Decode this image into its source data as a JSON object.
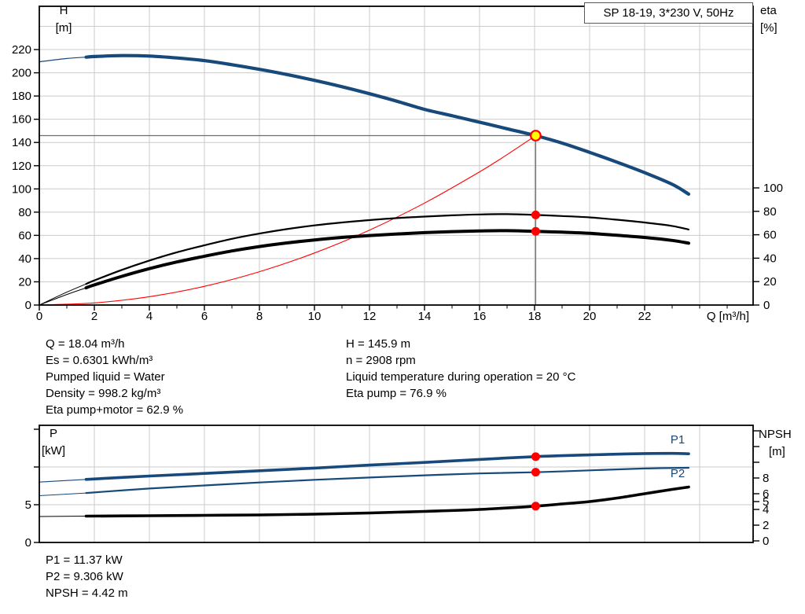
{
  "title_box": "SP 18-19, 3*230 V, 50Hz",
  "colors": {
    "curve_blue": "#17497B",
    "red": "#FF0000",
    "yellow": "#FFFF00",
    "black": "#000000",
    "grid": "#CBCBCB",
    "crosshair": "#6E6E6E",
    "border": "#000000"
  },
  "info_left": {
    "lines": [
      "Q = 18.04 m³/h",
      "Es = 0.6301 kWh/m³",
      "Pumped liquid = Water",
      "Density = 998.2 kg/m³",
      "Eta pump+motor = 62.9 %"
    ]
  },
  "info_right": {
    "lines": [
      "H = 145.9 m",
      "n = 2908 rpm",
      "Liquid temperature during operation = 20 °C",
      "Eta pump = 76.9 %"
    ]
  },
  "info_bottom": {
    "lines": [
      "P1 = 11.37 kW",
      "P2 = 9.306 kW",
      "NPSH = 4.42 m"
    ]
  },
  "chart_data": [
    {
      "type": "line",
      "id": "hq",
      "title": "SP 18-19, 3*230 V, 50Hz",
      "xlabel": "Q [m³/h]",
      "y_left_title": [
        "H",
        "[m]"
      ],
      "y_right_title": [
        "eta",
        "[%]"
      ],
      "xlim": [
        0,
        25.9
      ],
      "ylim_left": [
        0,
        257
      ],
      "ylim_right": [
        0,
        173
      ],
      "x_tick_labels": [
        0,
        2,
        4,
        6,
        8,
        10,
        12,
        14,
        16,
        18,
        20,
        22
      ],
      "y_left_ticks": [
        0,
        20,
        40,
        60,
        80,
        100,
        120,
        140,
        160,
        180,
        200,
        220
      ],
      "y_right_ticks": [
        0,
        20,
        40,
        60,
        80,
        100
      ],
      "grid": "on",
      "series": [
        {
          "name": "head-curve",
          "axis": "H",
          "color": "#17497B",
          "width": 4.2,
          "thin_width": 1.2,
          "thick_from": 1.7,
          "points": [
            [
              0,
              209.5
            ],
            [
              1,
              212.3
            ],
            [
              1.7,
              213.5
            ],
            [
              2,
              214
            ],
            [
              3,
              214.8
            ],
            [
              4,
              214.4
            ],
            [
              5,
              212.8
            ],
            [
              6,
              210.5
            ],
            [
              7,
              207
            ],
            [
              8,
              203
            ],
            [
              9,
              198.5
            ],
            [
              10,
              193.5
            ],
            [
              11,
              188
            ],
            [
              12,
              182
            ],
            [
              13,
              175.5
            ],
            [
              14,
              168.5
            ],
            [
              15,
              163
            ],
            [
              16,
              157.5
            ],
            [
              17,
              151.8
            ],
            [
              18.04,
              145.9
            ],
            [
              19,
              139.5
            ],
            [
              20,
              131.5
            ],
            [
              21,
              123
            ],
            [
              22,
              114
            ],
            [
              23,
              104
            ],
            [
              23.6,
              95.5
            ]
          ]
        },
        {
          "name": "system-curve",
          "axis": "H",
          "color": "#FF0000",
          "width": 1.1,
          "points": [
            [
              0,
              0
            ],
            [
              2,
              1.8
            ],
            [
              4,
              7.2
            ],
            [
              6,
              16.1
            ],
            [
              8,
              28.7
            ],
            [
              10,
              44.8
            ],
            [
              12,
              64.5
            ],
            [
              14,
              87.8
            ],
            [
              16,
              114.7
            ],
            [
              17,
              129.5
            ],
            [
              18.04,
              145.9
            ]
          ]
        },
        {
          "name": "eta-pump-curve",
          "axis": "eta",
          "color": "#000000",
          "width": 2.2,
          "thin_width": 1,
          "thick_from": 1.7,
          "points": [
            [
              0,
              0
            ],
            [
              1,
              11
            ],
            [
              1.7,
              18
            ],
            [
              2,
              21
            ],
            [
              3,
              30
            ],
            [
              4,
              38
            ],
            [
              5,
              45
            ],
            [
              6,
              51
            ],
            [
              7,
              56.5
            ],
            [
              8,
              61
            ],
            [
              9,
              64.8
            ],
            [
              10,
              68
            ],
            [
              11,
              70.5
            ],
            [
              12,
              72.5
            ],
            [
              13,
              74.2
            ],
            [
              14,
              75.5
            ],
            [
              15,
              76.6
            ],
            [
              16,
              77.3
            ],
            [
              17,
              77.6
            ],
            [
              18.04,
              76.9
            ],
            [
              19,
              76
            ],
            [
              20,
              74.8
            ],
            [
              21,
              72.8
            ],
            [
              22,
              70.5
            ],
            [
              23,
              67.5
            ],
            [
              23.6,
              64.5
            ]
          ]
        },
        {
          "name": "eta-pump-motor-curve",
          "axis": "eta",
          "color": "#000000",
          "width": 4,
          "thin_width": 1,
          "thick_from": 1.7,
          "points": [
            [
              0,
              0
            ],
            [
              1,
              9
            ],
            [
              1.7,
              14.7
            ],
            [
              2,
              17.2
            ],
            [
              3,
              24.5
            ],
            [
              4,
              31.1
            ],
            [
              5,
              36.8
            ],
            [
              6,
              41.7
            ],
            [
              7,
              46.2
            ],
            [
              8,
              49.9
            ],
            [
              9,
              53
            ],
            [
              10,
              55.6
            ],
            [
              11,
              57.7
            ],
            [
              12,
              59.3
            ],
            [
              13,
              60.7
            ],
            [
              14,
              61.8
            ],
            [
              15,
              62.7
            ],
            [
              16,
              63.2
            ],
            [
              17,
              63.5
            ],
            [
              18.04,
              62.9
            ],
            [
              19,
              62.2
            ],
            [
              20,
              61.2
            ],
            [
              21,
              59.5
            ],
            [
              22,
              57.7
            ],
            [
              23,
              55.2
            ],
            [
              23.6,
              52.8
            ]
          ]
        }
      ],
      "crosshair": {
        "q": 18.04,
        "h": 145.9
      },
      "duty_point": {
        "q": 18.04,
        "h": 145.9
      },
      "dots": [
        {
          "axis": "eta",
          "q": 18.04,
          "v": 76.9
        },
        {
          "axis": "eta",
          "q": 18.04,
          "v": 62.9
        }
      ]
    },
    {
      "type": "line",
      "id": "pnpsh",
      "y_left_title": [
        "P",
        "[kW]"
      ],
      "y_right_title": [
        "NPSH",
        "[m]"
      ],
      "xlim": [
        0,
        25.9
      ],
      "ylim_left": [
        0,
        15.5
      ],
      "ylim_right": [
        0,
        14.7
      ],
      "y_left_ticks": [
        {
          "v": 0,
          "label": "0"
        },
        {
          "v": 5,
          "label": "5"
        },
        {
          "v": 10,
          "label": ""
        },
        {
          "v": 15,
          "label": ""
        }
      ],
      "y_right_ticks": [
        {
          "v": 0,
          "label": "0"
        },
        {
          "v": 2,
          "label": "2"
        },
        {
          "v": 4,
          "label": "4"
        },
        {
          "v": 5,
          "label": "5"
        },
        {
          "v": 6,
          "label": "6"
        },
        {
          "v": 8,
          "label": "8"
        },
        {
          "v": 10,
          "label": ""
        },
        {
          "v": 12,
          "label": ""
        },
        {
          "v": 14,
          "label": ""
        }
      ],
      "grid": "on",
      "series": [
        {
          "name": "p1-curve",
          "axis": "P",
          "color": "#17497B",
          "width": 3.6,
          "thin_width": 1.2,
          "thick_from": 1.7,
          "points": [
            [
              0,
              8.0
            ],
            [
              1.7,
              8.35
            ],
            [
              4,
              8.8
            ],
            [
              6,
              9.15
            ],
            [
              8,
              9.5
            ],
            [
              10,
              9.85
            ],
            [
              12,
              10.25
            ],
            [
              14,
              10.6
            ],
            [
              16,
              11.0
            ],
            [
              18.04,
              11.37
            ],
            [
              20,
              11.6
            ],
            [
              21,
              11.7
            ],
            [
              22,
              11.78
            ],
            [
              23,
              11.8
            ],
            [
              23.6,
              11.75
            ]
          ]
        },
        {
          "name": "p2-curve",
          "axis": "P",
          "color": "#17497B",
          "width": 2.2,
          "thin_width": 1,
          "thick_from": 1.7,
          "points": [
            [
              0,
              6.2
            ],
            [
              1.7,
              6.55
            ],
            [
              4,
              7.15
            ],
            [
              6,
              7.55
            ],
            [
              8,
              7.95
            ],
            [
              10,
              8.3
            ],
            [
              12,
              8.6
            ],
            [
              14,
              8.9
            ],
            [
              16,
              9.15
            ],
            [
              18.04,
              9.306
            ],
            [
              20,
              9.55
            ],
            [
              22,
              9.8
            ],
            [
              23.6,
              9.9
            ]
          ]
        },
        {
          "name": "npsh-curve",
          "axis": "N",
          "color": "#000000",
          "width": 3.6,
          "thin_width": 1,
          "thick_from": 1.7,
          "points": [
            [
              0,
              3.1
            ],
            [
              1.7,
              3.15
            ],
            [
              4,
              3.2
            ],
            [
              6,
              3.25
            ],
            [
              8,
              3.3
            ],
            [
              10,
              3.4
            ],
            [
              12,
              3.55
            ],
            [
              14,
              3.75
            ],
            [
              16,
              4.0
            ],
            [
              18.04,
              4.42
            ],
            [
              19,
              4.7
            ],
            [
              20,
              5.0
            ],
            [
              21,
              5.45
            ],
            [
              22,
              6.0
            ],
            [
              23,
              6.55
            ],
            [
              23.6,
              6.85
            ]
          ]
        }
      ],
      "dots": [
        {
          "axis": "P",
          "q": 18.04,
          "v": 11.37
        },
        {
          "axis": "P",
          "q": 18.04,
          "v": 9.306
        },
        {
          "axis": "N",
          "q": 18.04,
          "v": 4.42
        }
      ],
      "curve_labels": [
        {
          "text": "P1"
        },
        {
          "text": "P2"
        }
      ]
    }
  ]
}
